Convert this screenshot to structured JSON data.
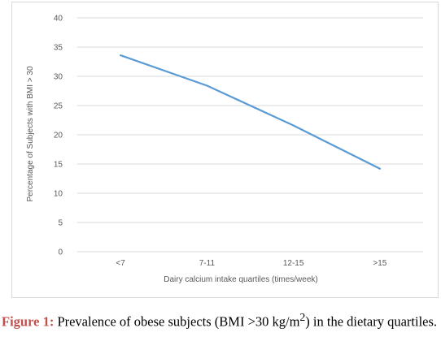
{
  "chart_data": {
    "type": "line",
    "categories": [
      "<7",
      "7-11",
      "12-15",
      ">15"
    ],
    "series": [
      {
        "values": [
          33.6,
          28.4,
          21.6,
          14.2
        ],
        "color": "#5b9bd5"
      }
    ],
    "xlabel": "Dairy calcium intake quartiles (times/week)",
    "ylabel": "Percentage of Subjects with BMI > 30",
    "ylim": [
      0,
      40
    ],
    "yticks": [
      0,
      5,
      10,
      15,
      20,
      25,
      30,
      35,
      40
    ],
    "grid": true
  },
  "caption": {
    "label": "Figure 1:",
    "text_before_sup": " Prevalence of obese subjects (BMI >30 kg/m",
    "superscript": "2",
    "text_after_sup": ") in the dietary quartiles."
  }
}
